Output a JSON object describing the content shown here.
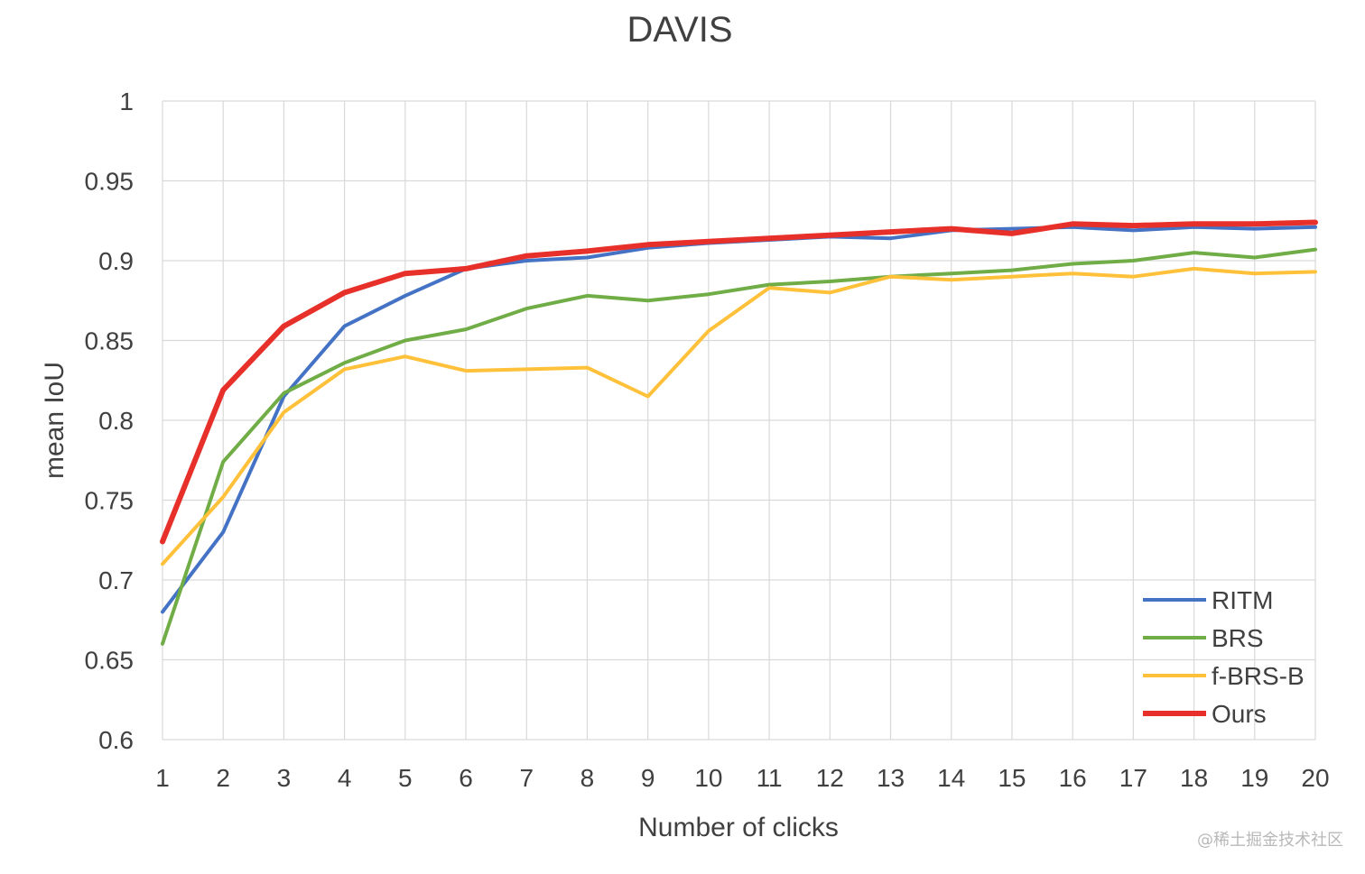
{
  "chart_data": {
    "type": "line",
    "title": "DAVIS",
    "xlabel": "Number of clicks",
    "ylabel": "mean IoU",
    "x": [
      1,
      2,
      3,
      4,
      5,
      6,
      7,
      8,
      9,
      10,
      11,
      12,
      13,
      14,
      15,
      16,
      17,
      18,
      19,
      20
    ],
    "ylim": [
      0.6,
      1
    ],
    "yticks": [
      0.6,
      0.65,
      0.7,
      0.75,
      0.8,
      0.85,
      0.9,
      0.95,
      1
    ],
    "grid": true,
    "legend_position": "bottom-right",
    "series": [
      {
        "name": "RITM",
        "color": "#4472C4",
        "values": [
          0.68,
          0.73,
          0.815,
          0.859,
          0.878,
          0.895,
          0.9,
          0.902,
          0.908,
          0.911,
          0.913,
          0.915,
          0.914,
          0.919,
          0.92,
          0.921,
          0.919,
          0.921,
          0.92,
          0.921
        ]
      },
      {
        "name": "BRS",
        "color": "#70AD47",
        "values": [
          0.66,
          0.774,
          0.817,
          0.836,
          0.85,
          0.857,
          0.87,
          0.878,
          0.875,
          0.879,
          0.885,
          0.887,
          0.89,
          0.892,
          0.894,
          0.898,
          0.9,
          0.905,
          0.902,
          0.907
        ]
      },
      {
        "name": "f-BRS-B",
        "color": "#FFC03A",
        "values": [
          0.71,
          0.752,
          0.805,
          0.832,
          0.84,
          0.831,
          0.832,
          0.833,
          0.815,
          0.856,
          0.883,
          0.88,
          0.89,
          0.888,
          0.89,
          0.892,
          0.89,
          0.895,
          0.892,
          0.893
        ]
      },
      {
        "name": "Ours",
        "color": "#E8302A",
        "values": [
          0.724,
          0.819,
          0.859,
          0.88,
          0.892,
          0.895,
          0.903,
          0.906,
          0.91,
          0.912,
          0.914,
          0.916,
          0.918,
          0.92,
          0.917,
          0.923,
          0.922,
          0.923,
          0.923,
          0.924
        ]
      }
    ]
  },
  "watermark": "@稀土掘金技术社区"
}
